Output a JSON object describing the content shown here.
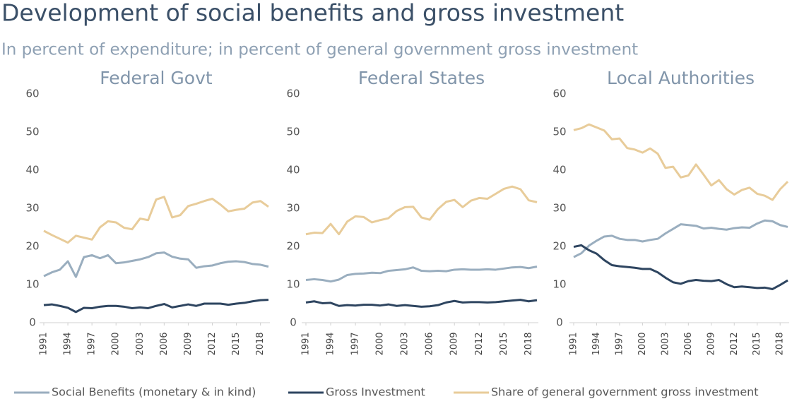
{
  "title": "Development of social benefits and gross investment",
  "subtitle": "In percent of expenditure; in percent of general government gross investment",
  "chart_data": [
    {
      "type": "line",
      "title": "Federal Govt",
      "x": [
        1991,
        1992,
        1993,
        1994,
        1995,
        1996,
        1997,
        1998,
        1999,
        2000,
        2001,
        2002,
        2003,
        2004,
        2005,
        2006,
        2007,
        2008,
        2009,
        2010,
        2011,
        2012,
        2013,
        2014,
        2015,
        2016,
        2017,
        2018,
        2019
      ],
      "xlim": [
        1991,
        2019
      ],
      "xticks": [
        1991,
        1994,
        1997,
        2000,
        2003,
        2006,
        2009,
        2012,
        2015,
        2018
      ],
      "ylim": [
        0,
        60
      ],
      "yticks": [
        0,
        10,
        20,
        30,
        40,
        50,
        60
      ],
      "series": [
        {
          "name": "Social Benefits (monetary & in kind)",
          "color": "#9aaebf",
          "values": [
            12.2,
            13.2,
            13.9,
            16.1,
            12.0,
            17.2,
            17.7,
            16.9,
            17.7,
            15.6,
            15.8,
            16.2,
            16.6,
            17.2,
            18.2,
            18.4,
            17.3,
            16.8,
            16.6,
            14.4,
            14.8,
            15.0,
            15.6,
            16.0,
            16.1,
            15.9,
            15.4,
            15.2,
            14.7
          ]
        },
        {
          "name": "Gross Investment",
          "color": "#2e4560",
          "values": [
            4.6,
            4.8,
            4.4,
            3.9,
            2.8,
            3.9,
            3.8,
            4.2,
            4.4,
            4.4,
            4.2,
            3.8,
            4.0,
            3.8,
            4.4,
            4.9,
            4.0,
            4.4,
            4.8,
            4.4,
            5.0,
            5.0,
            5.0,
            4.7,
            5.0,
            5.2,
            5.6,
            5.9,
            6.0
          ]
        },
        {
          "name": "Share of general government gross investment",
          "color": "#e8cc9a",
          "values": [
            24.1,
            23.0,
            22.0,
            21.0,
            22.8,
            22.3,
            21.8,
            25.0,
            26.6,
            26.3,
            24.9,
            24.5,
            27.3,
            26.9,
            32.3,
            33.0,
            27.6,
            28.2,
            30.6,
            31.2,
            31.9,
            32.5,
            31.0,
            29.2,
            29.6,
            29.9,
            31.5,
            31.9,
            30.4
          ]
        }
      ]
    },
    {
      "type": "line",
      "title": "Federal States",
      "x": [
        1991,
        1992,
        1993,
        1994,
        1995,
        1996,
        1997,
        1998,
        1999,
        2000,
        2001,
        2002,
        2003,
        2004,
        2005,
        2006,
        2007,
        2008,
        2009,
        2010,
        2011,
        2012,
        2013,
        2014,
        2015,
        2016,
        2017,
        2018,
        2019
      ],
      "xlim": [
        1991,
        2019
      ],
      "xticks": [
        1991,
        1994,
        1997,
        2000,
        2003,
        2006,
        2009,
        2012,
        2015,
        2018
      ],
      "ylim": [
        0,
        60
      ],
      "yticks": [
        0,
        10,
        20,
        30,
        40,
        50,
        60
      ],
      "series": [
        {
          "name": "Social Benefits (monetary & in kind)",
          "color": "#9aaebf",
          "values": [
            11.2,
            11.4,
            11.2,
            10.8,
            11.3,
            12.5,
            12.8,
            12.9,
            13.1,
            13.0,
            13.6,
            13.8,
            14.0,
            14.5,
            13.6,
            13.5,
            13.6,
            13.5,
            13.9,
            14.0,
            13.9,
            13.9,
            14.0,
            13.9,
            14.2,
            14.5,
            14.6,
            14.3,
            14.7
          ]
        },
        {
          "name": "Gross Investment",
          "color": "#2e4560",
          "values": [
            5.3,
            5.6,
            5.1,
            5.2,
            4.4,
            4.6,
            4.5,
            4.7,
            4.7,
            4.5,
            4.8,
            4.4,
            4.6,
            4.4,
            4.2,
            4.3,
            4.6,
            5.3,
            5.7,
            5.3,
            5.4,
            5.4,
            5.3,
            5.4,
            5.6,
            5.8,
            6.0,
            5.6,
            5.9
          ]
        },
        {
          "name": "Share of general government gross investment",
          "color": "#e8cc9a",
          "values": [
            23.2,
            23.6,
            23.5,
            25.9,
            23.2,
            26.5,
            27.9,
            27.7,
            26.3,
            26.9,
            27.4,
            29.3,
            30.3,
            30.4,
            27.6,
            27.0,
            29.8,
            31.7,
            32.2,
            30.3,
            32.0,
            32.7,
            32.5,
            33.8,
            35.1,
            35.7,
            35.0,
            32.1,
            31.6
          ]
        }
      ]
    },
    {
      "type": "line",
      "title": "Local Authorities",
      "x": [
        1991,
        1992,
        1993,
        1994,
        1995,
        1996,
        1997,
        1998,
        1999,
        2000,
        2001,
        2002,
        2003,
        2004,
        2005,
        2006,
        2007,
        2008,
        2009,
        2010,
        2011,
        2012,
        2013,
        2014,
        2015,
        2016,
        2017,
        2018,
        2019
      ],
      "xlim": [
        1991,
        2019
      ],
      "xticks": [
        1991,
        1994,
        1997,
        2000,
        2003,
        2006,
        2009,
        2012,
        2015,
        2018
      ],
      "ylim": [
        0,
        60
      ],
      "yticks": [
        0,
        10,
        20,
        30,
        40,
        50,
        60
      ],
      "series": [
        {
          "name": "Social Benefits (monetary & in kind)",
          "color": "#9aaebf",
          "values": [
            17.2,
            18.2,
            20.2,
            21.5,
            22.6,
            22.8,
            22.0,
            21.7,
            21.7,
            21.3,
            21.7,
            22.0,
            23.4,
            24.6,
            25.8,
            25.6,
            25.4,
            24.7,
            24.9,
            24.6,
            24.4,
            24.8,
            25.0,
            24.9,
            26.0,
            26.8,
            26.6,
            25.6,
            25.1
          ]
        },
        {
          "name": "Gross Investment",
          "color": "#2e4560",
          "values": [
            19.9,
            20.3,
            19.0,
            18.1,
            16.4,
            15.1,
            14.8,
            14.6,
            14.4,
            14.1,
            14.1,
            13.2,
            11.8,
            10.6,
            10.2,
            10.9,
            11.2,
            11.0,
            10.9,
            11.2,
            10.1,
            9.3,
            9.5,
            9.3,
            9.1,
            9.2,
            8.8,
            9.9,
            11.1
          ]
        },
        {
          "name": "Share of general government gross investment",
          "color": "#e8cc9a",
          "values": [
            50.5,
            51.0,
            52.0,
            51.2,
            50.4,
            48.1,
            48.3,
            45.8,
            45.4,
            44.6,
            45.7,
            44.3,
            40.6,
            40.9,
            38.1,
            38.6,
            41.5,
            38.8,
            36.0,
            37.4,
            35.0,
            33.6,
            34.8,
            35.4,
            33.8,
            33.3,
            32.2,
            35.0,
            37.0
          ]
        }
      ]
    }
  ]
}
